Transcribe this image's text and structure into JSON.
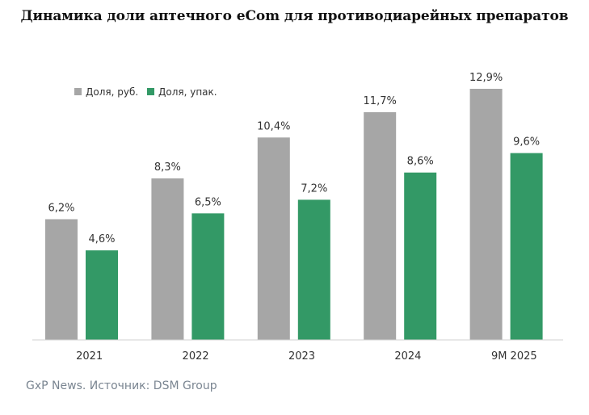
{
  "chart_data": {
    "type": "bar",
    "title": "Динамика доли аптечного eCom для противодиарейных препаратов",
    "categories": [
      "2021",
      "2022",
      "2023",
      "2024",
      "9M 2025"
    ],
    "series": [
      {
        "name": "Доля, руб.",
        "values": [
          6.2,
          8.3,
          10.4,
          11.7,
          12.9
        ],
        "labels": [
          "6,2%",
          "8,3%",
          "10,4%",
          "11,7%",
          "12,9%"
        ],
        "color": "#a6a6a6"
      },
      {
        "name": "Доля, упак.",
        "values": [
          4.6,
          6.5,
          7.2,
          8.6,
          9.6
        ],
        "labels": [
          "4,6%",
          "6,5%",
          "7,2%",
          "8,6%",
          "9,6%"
        ],
        "color": "#339966"
      }
    ],
    "ylim": [
      0,
      15
    ],
    "xlabel": "",
    "ylabel": "",
    "grid": false,
    "legend_position": "top-left"
  },
  "footer": {
    "source": "GxP News. Источник: DSM Group"
  }
}
